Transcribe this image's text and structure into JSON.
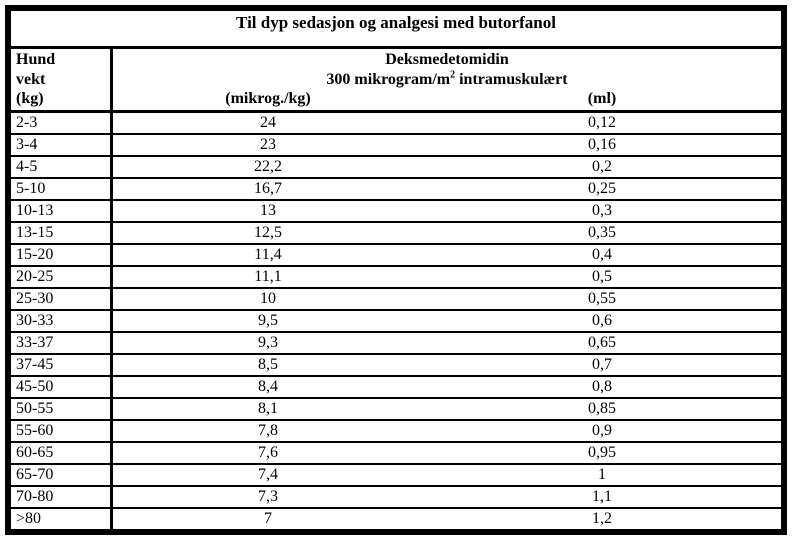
{
  "title": "Til dyp sedasjon og analgesi med butorfanol",
  "table": {
    "col1_header_lines": [
      "Hund",
      "vekt",
      "(kg)"
    ],
    "group_header": {
      "line1": "Deksmedetomidin",
      "line2_prefix": "300 mikrogram/m",
      "line2_sup": "2",
      "line2_suffix": " intramuskulært",
      "sub_col_microg": "(mikrog./kg)",
      "sub_col_ml": "(ml)"
    },
    "rows": [
      {
        "weight": "2-3",
        "microg_per_kg": "24",
        "ml": "0,12"
      },
      {
        "weight": "3-4",
        "microg_per_kg": "23",
        "ml": "0,16"
      },
      {
        "weight": "4-5",
        "microg_per_kg": "22,2",
        "ml": "0,2"
      },
      {
        "weight": "5-10",
        "microg_per_kg": "16,7",
        "ml": "0,25"
      },
      {
        "weight": "10-13",
        "microg_per_kg": "13",
        "ml": "0,3"
      },
      {
        "weight": "13-15",
        "microg_per_kg": "12,5",
        "ml": "0,35"
      },
      {
        "weight": "15-20",
        "microg_per_kg": "11,4",
        "ml": "0,4"
      },
      {
        "weight": "20-25",
        "microg_per_kg": "11,1",
        "ml": "0,5"
      },
      {
        "weight": "25-30",
        "microg_per_kg": "10",
        "ml": "0,55"
      },
      {
        "weight": "30-33",
        "microg_per_kg": "9,5",
        "ml": "0,6"
      },
      {
        "weight": "33-37",
        "microg_per_kg": "9,3",
        "ml": "0,65"
      },
      {
        "weight": "37-45",
        "microg_per_kg": "8,5",
        "ml": "0,7"
      },
      {
        "weight": "45-50",
        "microg_per_kg": "8,4",
        "ml": "0,8"
      },
      {
        "weight": "50-55",
        "microg_per_kg": "8,1",
        "ml": "0,85"
      },
      {
        "weight": "55-60",
        "microg_per_kg": "7,8",
        "ml": "0,9"
      },
      {
        "weight": "60-65",
        "microg_per_kg": "7,6",
        "ml": "0,95"
      },
      {
        "weight": "65-70",
        "microg_per_kg": "7,4",
        "ml": "1"
      },
      {
        "weight": "70-80",
        "microg_per_kg": "7,3",
        "ml": "1,1"
      },
      {
        "weight": ">80",
        "microg_per_kg": "7",
        "ml": "1,2"
      }
    ],
    "colors": {
      "border": "#000000",
      "background": "#ffffff",
      "text": "#000000"
    }
  }
}
